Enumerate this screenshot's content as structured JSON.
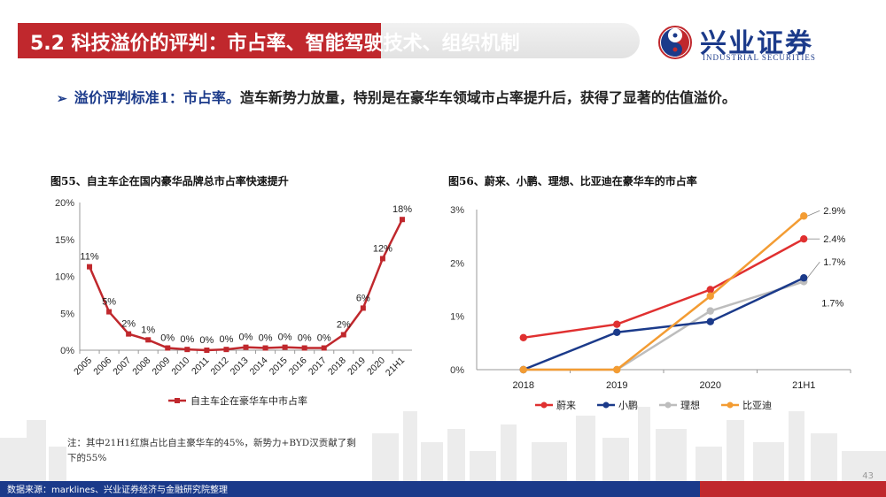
{
  "header": {
    "title_prefix": "5.2 ",
    "title_main": "科技溢价的评判：市占率、智能驾驶技术、组织机制",
    "logo_cn": "兴业证券",
    "logo_en": "INDUSTRIAL SECURITIES"
  },
  "intro": {
    "bullet": "➢",
    "label": "溢价评判标准1：市占率。",
    "text": "造车新势力放量，特别是在豪华车领域市占率提升后，获得了显著的估值溢价。"
  },
  "fig_left_title": "图55、自主车企在国内豪华品牌总市占率快速提升",
  "fig_right_title": "图56、蔚来、小鹏、理想、比亚迪在豪华车的市占率",
  "note": "注：其中21H1红旗占比自主豪华车的45%，新势力+BYD汉贡献了剩下的55%",
  "footer": {
    "source": "数据来源：marklines、兴业证券经济与金融研究院整理",
    "page": "43"
  },
  "colors": {
    "brand_red": "#c0282d",
    "brand_blue": "#1b3a8a",
    "nio": "#e03030",
    "xpeng": "#1b3a8a",
    "li": "#bdbdbd",
    "byd": "#f39c33"
  },
  "chart_data": [
    {
      "type": "line",
      "categories": [
        "2005",
        "2006",
        "2007",
        "2008",
        "2009",
        "2010",
        "2011",
        "2012",
        "2013",
        "2014",
        "2015",
        "2016",
        "2017",
        "2018",
        "2019",
        "2020",
        "21H1"
      ],
      "series": [
        {
          "name": "自主车企在豪华车中市占率",
          "values": [
            11.3,
            5.2,
            2.2,
            1.4,
            0.3,
            0.1,
            0.0,
            0.1,
            0.4,
            0.3,
            0.4,
            0.3,
            0.3,
            2.1,
            5.7,
            12.4,
            17.7
          ],
          "labels": [
            "11%",
            "5%",
            "2%",
            "1%",
            "0%",
            "0%",
            "0%",
            "0%",
            "0%",
            "0%",
            "0%",
            "0%",
            "0%",
            "2%",
            "6%",
            "12%",
            "18%"
          ]
        }
      ],
      "ylim": [
        0,
        20
      ],
      "yticks": [
        "0%",
        "5%",
        "10%",
        "15%",
        "20%"
      ],
      "legend": "bottom"
    },
    {
      "type": "line",
      "categories": [
        "2018",
        "2019",
        "2020",
        "21H1"
      ],
      "series": [
        {
          "name": "蔚来",
          "values": [
            0.6,
            0.85,
            1.5,
            2.45
          ],
          "end_label": "2.4%"
        },
        {
          "name": "小鹏",
          "values": [
            0.0,
            0.7,
            0.9,
            1.72
          ],
          "end_label": "1.7%"
        },
        {
          "name": "理想",
          "values": [
            0.0,
            0.0,
            1.1,
            1.65
          ],
          "end_label": "1.7%"
        },
        {
          "name": "比亚迪",
          "values": [
            0.0,
            0.0,
            1.38,
            2.88
          ],
          "end_label": "2.9%"
        }
      ],
      "ylim": [
        0,
        3
      ],
      "yticks": [
        "0%",
        "1%",
        "2%",
        "3%"
      ],
      "legend": "bottom"
    }
  ]
}
